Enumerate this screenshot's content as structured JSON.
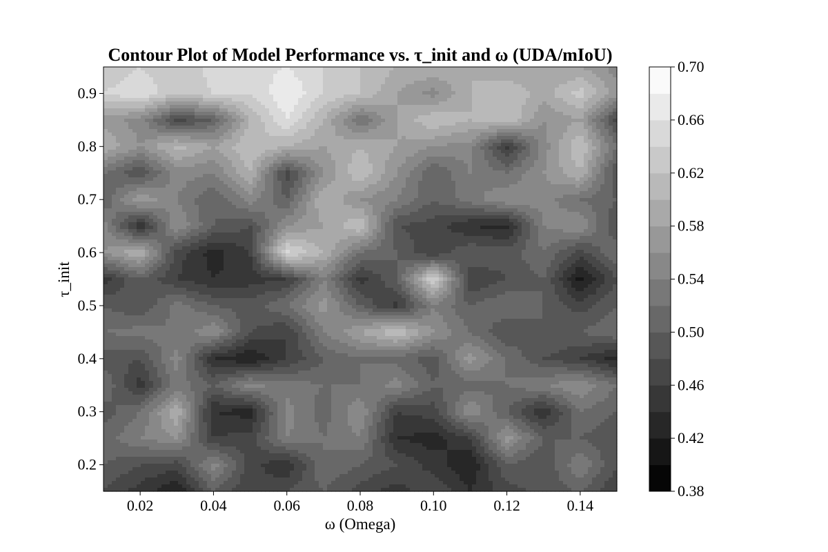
{
  "chart_data": {
    "type": "heatmap",
    "subtype": "filled-contour",
    "colormap": "grayscale",
    "title": "Contour Plot of Model Performance vs. τ_init and ω (UDA/mIoU)",
    "xlabel": "ω (Omega)",
    "ylabel": "τ_init",
    "xlim": [
      0.01,
      0.15
    ],
    "ylim": [
      0.15,
      0.95
    ],
    "xticks": [
      "0.02",
      "0.04",
      "0.06",
      "0.08",
      "0.10",
      "0.12",
      "0.14"
    ],
    "yticks": [
      "0.2",
      "0.3",
      "0.4",
      "0.5",
      "0.6",
      "0.7",
      "0.8",
      "0.9"
    ],
    "colorbar": {
      "min": 0.38,
      "max": 0.7,
      "levels": [
        0.38,
        0.4,
        0.42,
        0.44,
        0.46,
        0.48,
        0.5,
        0.52,
        0.54,
        0.56,
        0.58,
        0.6,
        0.62,
        0.64,
        0.66,
        0.68,
        0.7
      ],
      "tick_labels": [
        "0.38",
        "0.42",
        "0.46",
        "0.50",
        "0.54",
        "0.58",
        "0.62",
        "0.66",
        "0.70"
      ]
    },
    "x": [
      0.01,
      0.02,
      0.03,
      0.04,
      0.05,
      0.06,
      0.07,
      0.08,
      0.09,
      0.1,
      0.11,
      0.12,
      0.13,
      0.14,
      0.15
    ],
    "y": [
      0.15,
      0.2,
      0.25,
      0.3,
      0.35,
      0.4,
      0.45,
      0.5,
      0.55,
      0.6,
      0.65,
      0.7,
      0.75,
      0.8,
      0.85,
      0.9,
      0.95
    ],
    "z": [
      [
        0.48,
        0.45,
        0.42,
        0.5,
        0.46,
        0.48,
        0.5,
        0.47,
        0.45,
        0.48,
        0.44,
        0.47,
        0.49,
        0.5,
        0.46
      ],
      [
        0.5,
        0.48,
        0.47,
        0.55,
        0.47,
        0.44,
        0.52,
        0.5,
        0.48,
        0.45,
        0.42,
        0.5,
        0.48,
        0.54,
        0.48
      ],
      [
        0.51,
        0.54,
        0.56,
        0.46,
        0.47,
        0.54,
        0.52,
        0.54,
        0.44,
        0.43,
        0.46,
        0.57,
        0.5,
        0.5,
        0.48
      ],
      [
        0.49,
        0.52,
        0.6,
        0.44,
        0.43,
        0.55,
        0.51,
        0.56,
        0.46,
        0.47,
        0.56,
        0.5,
        0.44,
        0.52,
        0.5
      ],
      [
        0.52,
        0.45,
        0.53,
        0.5,
        0.55,
        0.53,
        0.52,
        0.52,
        0.55,
        0.5,
        0.51,
        0.52,
        0.54,
        0.56,
        0.52
      ],
      [
        0.49,
        0.48,
        0.55,
        0.44,
        0.42,
        0.46,
        0.5,
        0.52,
        0.51,
        0.49,
        0.57,
        0.52,
        0.48,
        0.46,
        0.43
      ],
      [
        0.52,
        0.53,
        0.52,
        0.56,
        0.48,
        0.46,
        0.54,
        0.58,
        0.62,
        0.56,
        0.52,
        0.48,
        0.5,
        0.5,
        0.52
      ],
      [
        0.5,
        0.48,
        0.53,
        0.5,
        0.49,
        0.52,
        0.57,
        0.5,
        0.45,
        0.54,
        0.5,
        0.52,
        0.5,
        0.47,
        0.5
      ],
      [
        0.45,
        0.5,
        0.46,
        0.44,
        0.45,
        0.46,
        0.54,
        0.45,
        0.5,
        0.64,
        0.46,
        0.48,
        0.5,
        0.41,
        0.48
      ],
      [
        0.56,
        0.6,
        0.47,
        0.43,
        0.46,
        0.65,
        0.6,
        0.52,
        0.5,
        0.46,
        0.5,
        0.49,
        0.52,
        0.47,
        0.52
      ],
      [
        0.55,
        0.44,
        0.56,
        0.5,
        0.48,
        0.56,
        0.58,
        0.62,
        0.48,
        0.47,
        0.44,
        0.43,
        0.54,
        0.56,
        0.48
      ],
      [
        0.5,
        0.58,
        0.54,
        0.5,
        0.55,
        0.5,
        0.6,
        0.56,
        0.54,
        0.5,
        0.53,
        0.56,
        0.55,
        0.52,
        0.5
      ],
      [
        0.52,
        0.48,
        0.55,
        0.54,
        0.6,
        0.47,
        0.56,
        0.62,
        0.56,
        0.5,
        0.54,
        0.52,
        0.56,
        0.6,
        0.48
      ],
      [
        0.6,
        0.56,
        0.61,
        0.58,
        0.62,
        0.6,
        0.58,
        0.6,
        0.58,
        0.56,
        0.55,
        0.45,
        0.55,
        0.62,
        0.52
      ],
      [
        0.57,
        0.55,
        0.47,
        0.5,
        0.6,
        0.66,
        0.6,
        0.52,
        0.58,
        0.62,
        0.6,
        0.62,
        0.56,
        0.58,
        0.47
      ],
      [
        0.64,
        0.66,
        0.62,
        0.64,
        0.64,
        0.68,
        0.64,
        0.62,
        0.58,
        0.55,
        0.6,
        0.62,
        0.59,
        0.63,
        0.57
      ],
      [
        0.62,
        0.64,
        0.62,
        0.65,
        0.65,
        0.66,
        0.64,
        0.62,
        0.6,
        0.6,
        0.6,
        0.58,
        0.58,
        0.58,
        0.55
      ]
    ]
  }
}
